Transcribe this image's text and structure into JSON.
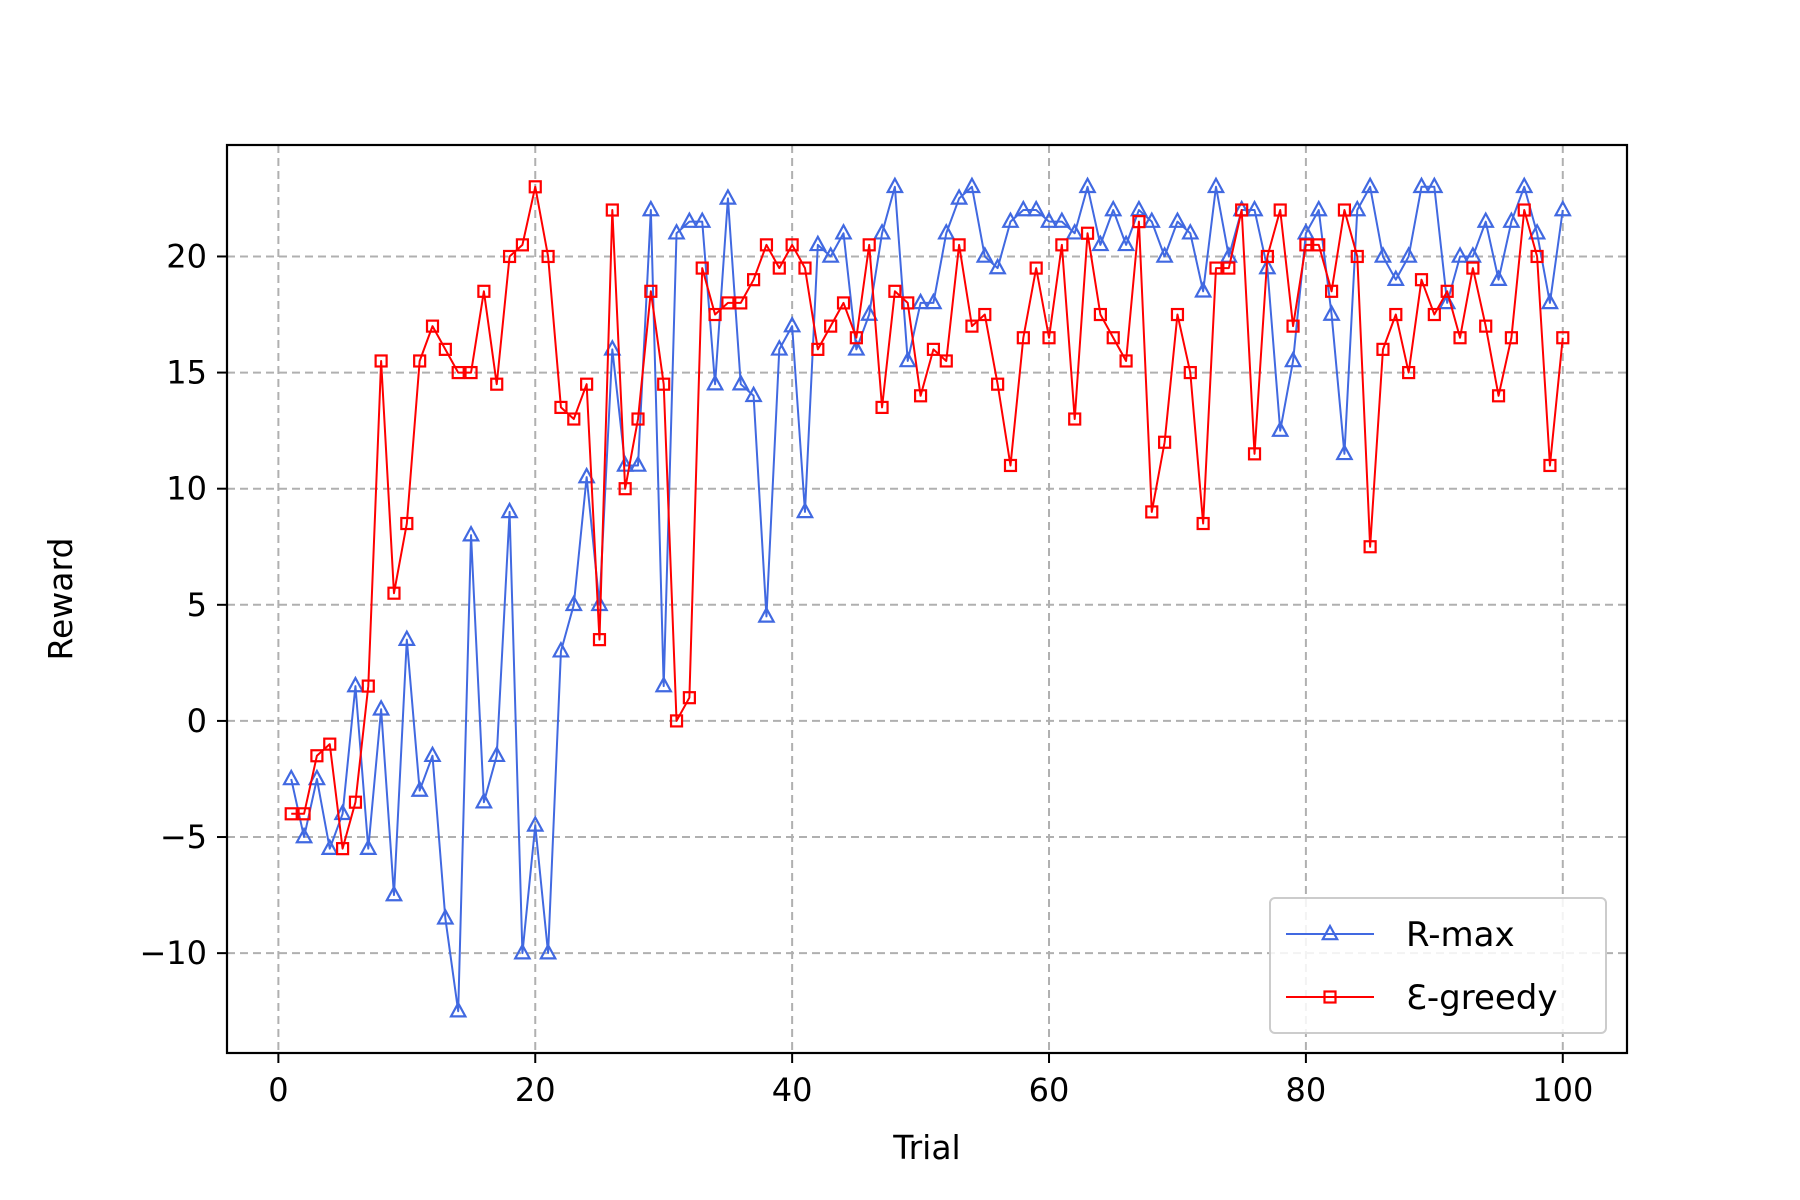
{
  "chart_data": {
    "type": "line",
    "xlabel": "Trial",
    "ylabel": "Reward",
    "xlim": [
      -4,
      105
    ],
    "ylim": [
      -14.3,
      24.8
    ],
    "xticks": [
      0,
      20,
      40,
      60,
      80,
      100
    ],
    "yticks": [
      -10,
      -5,
      0,
      5,
      10,
      15,
      20
    ],
    "ytick_labels": [
      "−10",
      "−5",
      "0",
      "5",
      "10",
      "15",
      "20"
    ],
    "grid": true,
    "legend_position": "lower-right",
    "x": [
      1,
      2,
      3,
      4,
      5,
      6,
      7,
      8,
      9,
      10,
      11,
      12,
      13,
      14,
      15,
      16,
      17,
      18,
      19,
      20,
      21,
      22,
      23,
      24,
      25,
      26,
      27,
      28,
      29,
      30,
      31,
      32,
      33,
      34,
      35,
      36,
      37,
      38,
      39,
      40,
      41,
      42,
      43,
      44,
      45,
      46,
      47,
      48,
      49,
      50,
      51,
      52,
      53,
      54,
      55,
      56,
      57,
      58,
      59,
      60,
      61,
      62,
      63,
      64,
      65,
      66,
      67,
      68,
      69,
      70,
      71,
      72,
      73,
      74,
      75,
      76,
      77,
      78,
      79,
      80,
      81,
      82,
      83,
      84,
      85,
      86,
      87,
      88,
      89,
      90,
      91,
      92,
      93,
      94,
      95,
      96,
      97,
      98,
      99,
      100
    ],
    "series": [
      {
        "name": "R-max",
        "color": "#4169e1",
        "marker": "triangle",
        "values": [
          -2.5,
          -5,
          -2.5,
          -5.5,
          -4,
          1.5,
          -5.5,
          0.5,
          -7.5,
          3.5,
          -3,
          -1.5,
          -8.5,
          -12.5,
          8,
          -3.5,
          -1.5,
          9,
          -10,
          -4.5,
          -10,
          3,
          5,
          10.5,
          5,
          16,
          11,
          11,
          22,
          1.5,
          21,
          21.5,
          21.5,
          14.5,
          22.5,
          14.5,
          14,
          4.5,
          16,
          17,
          9,
          20.5,
          20,
          21,
          16,
          17.5,
          21,
          23,
          15.5,
          18,
          18,
          21,
          22.5,
          23,
          20,
          19.5,
          21.5,
          22,
          22,
          21.5,
          21.5,
          21,
          23,
          20.5,
          22,
          20.5,
          22,
          21.5,
          20,
          21.5,
          21,
          18.5,
          23,
          20,
          22,
          22,
          19.5,
          12.5,
          15.5,
          21,
          22,
          17.5,
          11.5,
          22,
          23,
          20,
          19,
          20,
          23,
          23,
          18,
          20,
          20,
          21.5,
          19,
          21.5,
          23,
          21,
          18,
          22
        ]
      },
      {
        "name": "Ɛ-greedy",
        "color": "#ff0000",
        "marker": "square",
        "values": [
          -4,
          -4,
          -1.5,
          -1,
          -5.5,
          -3.5,
          1.5,
          15.5,
          5.5,
          8.5,
          15.5,
          17,
          16,
          15,
          15,
          18.5,
          14.5,
          20,
          20.5,
          23,
          20,
          13.5,
          13,
          14.5,
          3.5,
          22,
          10,
          13,
          18.5,
          14.5,
          0,
          1,
          19.5,
          17.5,
          18,
          18,
          19,
          20.5,
          19.5,
          20.5,
          19.5,
          16,
          17,
          18,
          16.5,
          20.5,
          13.5,
          18.5,
          18,
          14,
          16,
          15.5,
          20.5,
          17,
          17.5,
          14.5,
          11,
          16.5,
          19.5,
          16.5,
          20.5,
          13,
          21,
          17.5,
          16.5,
          15.5,
          21.5,
          9,
          12,
          17.5,
          15,
          8.5,
          19.5,
          19.5,
          22,
          11.5,
          20,
          22,
          17,
          20.5,
          20.5,
          18.5,
          22,
          20,
          7.5,
          16,
          17.5,
          15,
          19,
          17.5,
          18.5,
          16.5,
          19.5,
          17,
          14,
          16.5,
          22,
          20,
          11,
          16.5
        ]
      }
    ]
  }
}
